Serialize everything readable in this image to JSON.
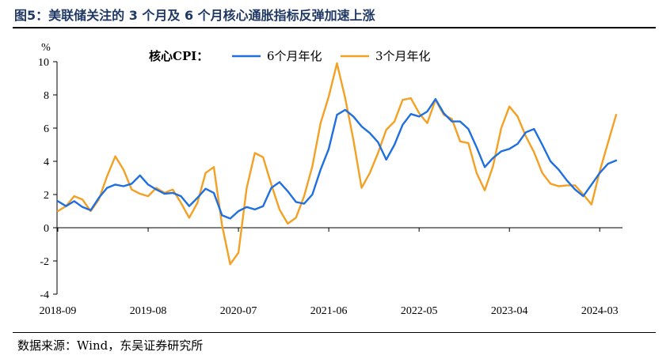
{
  "title": "图5：美联储关注的 3 个月及 6 个月核心通胀指标反弹加速上涨",
  "source": "数据来源：Wind，东吴证券研究所",
  "chart_data": {
    "type": "line",
    "ylabel": "%",
    "ylim": [
      -4,
      10
    ],
    "yticks": [
      "10",
      "8",
      "6",
      "4",
      "2",
      "0",
      "-2",
      "-4"
    ],
    "xtick_labels": [
      "2018-09",
      "2019-08",
      "2020-07",
      "2021-06",
      "2022-05",
      "2023-04",
      "2024-03"
    ],
    "legend_title": "核心CPI：",
    "grid": false,
    "series": [
      {
        "name": "6个月年化",
        "color": "#1f6fe0",
        "values": [
          1.6,
          1.3,
          1.6,
          1.25,
          1.05,
          1.8,
          2.4,
          2.6,
          2.5,
          2.65,
          3.15,
          2.6,
          2.3,
          2.05,
          2.1,
          1.9,
          1.3,
          1.8,
          2.35,
          2.1,
          0.75,
          0.55,
          1.0,
          1.25,
          1.1,
          1.3,
          2.4,
          2.75,
          2.2,
          1.55,
          1.45,
          2.0,
          3.5,
          4.75,
          6.8,
          7.1,
          6.7,
          6.1,
          5.7,
          5.15,
          4.1,
          5.0,
          6.2,
          6.85,
          6.7,
          7.0,
          7.75,
          6.9,
          6.4,
          6.4,
          5.95,
          4.85,
          3.65,
          4.2,
          4.6,
          4.75,
          5.05,
          5.75,
          5.95,
          5.0,
          4.0,
          3.5,
          2.85,
          2.3,
          1.9,
          2.6,
          3.3,
          3.85,
          4.05
        ]
      },
      {
        "name": "3个月年化",
        "color": "#f4a023",
        "values": [
          1.0,
          1.3,
          1.9,
          1.7,
          1.0,
          1.7,
          3.1,
          4.3,
          3.5,
          2.3,
          2.05,
          1.9,
          2.4,
          2.1,
          2.3,
          1.5,
          0.6,
          1.5,
          3.3,
          3.65,
          0.15,
          -2.2,
          -1.5,
          2.4,
          4.5,
          4.25,
          2.6,
          1.1,
          0.25,
          0.6,
          1.9,
          3.7,
          6.3,
          7.9,
          9.9,
          7.8,
          5.3,
          2.4,
          3.3,
          4.5,
          5.9,
          6.4,
          7.7,
          7.8,
          6.9,
          6.3,
          7.7,
          6.8,
          6.55,
          5.2,
          5.1,
          3.3,
          2.25,
          3.7,
          6.0,
          7.3,
          6.7,
          5.5,
          4.55,
          3.3,
          2.65,
          2.5,
          2.55,
          2.55,
          2.0,
          1.4,
          3.4,
          5.1,
          6.8
        ]
      }
    ]
  }
}
